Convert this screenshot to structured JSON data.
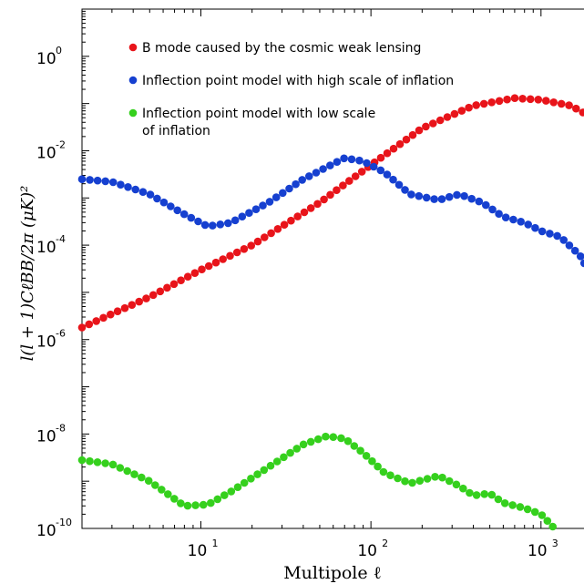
{
  "chart_data": {
    "type": "scatter",
    "title": "",
    "xlabel": "Multipole ℓ",
    "ylabel": "l(l + 1)CℓBB/2π  (μK)²",
    "xscale": "log",
    "yscale": "log",
    "xlim": [
      2,
      2000
    ],
    "ylim": [
      1e-10,
      10
    ],
    "xticks": [
      {
        "base": "10",
        "exp": "1"
      },
      {
        "base": "10",
        "exp": "2"
      },
      {
        "base": "10",
        "exp": "3"
      }
    ],
    "yticks": [
      {
        "base": "10",
        "exp": "0"
      },
      {
        "base": "10",
        "exp": "-2"
      },
      {
        "base": "10",
        "exp": "-4"
      },
      {
        "base": "10",
        "exp": "-6"
      },
      {
        "base": "10",
        "exp": "-8"
      },
      {
        "base": "10",
        "exp": "-10"
      }
    ],
    "grid": false,
    "legend_position": "top-left",
    "series": [
      {
        "name": "B mode caused by the cosmic weak lensing",
        "color": "#e8141a",
        "x": [
          2,
          3,
          5,
          10,
          20,
          50,
          100,
          200,
          400,
          700,
          1000,
          1500,
          2000
        ],
        "y": [
          1.8e-06,
          3.5e-06,
          8e-06,
          3e-05,
          0.0001,
          0.0008,
          0.005,
          0.03,
          0.09,
          0.13,
          0.12,
          0.09,
          0.05
        ]
      },
      {
        "name": "Inflection point model with high scale of inflation",
        "color": "#1640d0",
        "x": [
          2,
          3,
          5,
          8,
          11,
          15,
          25,
          40,
          70,
          90,
          120,
          170,
          250,
          330,
          450,
          600,
          800,
          1000,
          1300,
          1700,
          2000
        ],
        "y": [
          0.0025,
          0.0022,
          0.0012,
          0.00045,
          0.00025,
          0.0003,
          0.0008,
          0.0025,
          0.007,
          0.006,
          0.0035,
          0.0012,
          0.0009,
          0.0012,
          0.0008,
          0.0004,
          0.0003,
          0.0002,
          0.00015,
          6e-05,
          2e-05
        ]
      },
      {
        "name": "Inflection point model with low scale of inflation",
        "color": "#35d01d",
        "x": [
          2,
          3,
          5,
          8,
          11,
          15,
          25,
          40,
          55,
          70,
          90,
          120,
          170,
          250,
          330,
          400,
          500,
          600,
          800,
          1000,
          1200
        ],
        "y": [
          2.8e-09,
          2.3e-09,
          1e-09,
          3e-10,
          3.2e-10,
          6e-10,
          2e-09,
          6e-09,
          9e-09,
          8e-09,
          4e-09,
          1.5e-09,
          9e-10,
          1.3e-09,
          8e-10,
          5e-10,
          5.5e-10,
          3.5e-10,
          2.7e-10,
          2e-10,
          1e-10
        ]
      }
    ]
  }
}
